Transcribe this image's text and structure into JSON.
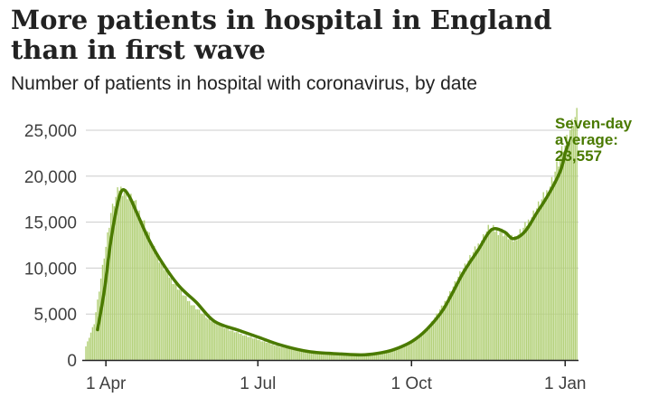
{
  "title_line1": "More patients in hospital in England",
  "title_line2": "than in first wave",
  "subtitle": "Number of patients in hospital with coronavirus, by date",
  "colors": {
    "bar": "#b4d17a",
    "line": "#4a7a00",
    "grid": "#cccccc",
    "axis": "#222222",
    "text": "#404040"
  },
  "chart_data": {
    "type": "bar",
    "title": "More patients in hospital in England than in first wave",
    "subtitle": "Number of patients in hospital with coronavirus, by date",
    "xlabel": "",
    "ylabel": "",
    "ylim": [
      0,
      25000
    ],
    "y_ticks": [
      0,
      5000,
      10000,
      15000,
      20000,
      25000
    ],
    "y_tick_labels": [
      "0",
      "5,000",
      "10,000",
      "15,000",
      "20,000",
      "25,000"
    ],
    "x_range": [
      "2020-03-20",
      "2021-01-09"
    ],
    "x_ticks": [
      "2020-04-01",
      "2020-07-01",
      "2020-10-01",
      "2021-01-01"
    ],
    "x_tick_labels": [
      "1 Apr",
      "1 Jul",
      "1 Oct",
      "1 Jan"
    ],
    "grid": true,
    "daily_patients_anchors": {
      "dates": [
        "2020-03-20",
        "2020-03-25",
        "2020-03-30",
        "2020-04-04",
        "2020-04-09",
        "2020-04-12",
        "2020-04-18",
        "2020-04-25",
        "2020-05-01",
        "2020-05-10",
        "2020-05-20",
        "2020-06-01",
        "2020-06-15",
        "2020-07-01",
        "2020-07-15",
        "2020-08-01",
        "2020-08-15",
        "2020-09-01",
        "2020-09-10",
        "2020-09-20",
        "2020-10-01",
        "2020-10-10",
        "2020-10-20",
        "2020-11-01",
        "2020-11-10",
        "2020-11-16",
        "2020-11-24",
        "2020-12-01",
        "2020-12-08",
        "2020-12-15",
        "2020-12-22",
        "2020-12-29",
        "2021-01-03",
        "2021-01-06",
        "2021-01-08"
      ],
      "values": [
        1500,
        4000,
        10000,
        16000,
        18700,
        18400,
        17200,
        14500,
        11500,
        8800,
        6500,
        4500,
        3200,
        2200,
        1400,
        900,
        650,
        550,
        700,
        1100,
        1900,
        3300,
        6000,
        10000,
        12500,
        14300,
        14000,
        13000,
        14500,
        16500,
        18500,
        22000,
        24500,
        26000,
        26500
      ]
    },
    "series": [
      {
        "name": "Seven-day average",
        "dates": [
          "2020-03-27",
          "2020-03-31",
          "2020-04-04",
          "2020-04-08",
          "2020-04-11",
          "2020-04-15",
          "2020-04-20",
          "2020-04-27",
          "2020-05-05",
          "2020-05-15",
          "2020-05-25",
          "2020-06-05",
          "2020-06-20",
          "2020-07-01",
          "2020-07-15",
          "2020-08-01",
          "2020-08-20",
          "2020-09-01",
          "2020-09-10",
          "2020-09-20",
          "2020-10-01",
          "2020-10-10",
          "2020-10-20",
          "2020-11-01",
          "2020-11-10",
          "2020-11-16",
          "2020-11-20",
          "2020-11-26",
          "2020-12-01",
          "2020-12-08",
          "2020-12-15",
          "2020-12-22",
          "2020-12-29",
          "2021-01-01",
          "2021-01-03"
        ],
        "values": [
          3300,
          7500,
          13000,
          17000,
          18500,
          17800,
          15800,
          13000,
          10500,
          8000,
          6300,
          4200,
          3200,
          2500,
          1600,
          900,
          650,
          550,
          700,
          1100,
          2000,
          3300,
          5500,
          9500,
          12000,
          13800,
          14300,
          13900,
          13200,
          14000,
          16000,
          18000,
          20500,
          22500,
          23557
        ]
      }
    ],
    "annotations": [
      {
        "lines": [
          "Seven-day",
          "average:",
          "23,557"
        ],
        "date": "2021-01-03",
        "value": 23557
      }
    ]
  }
}
